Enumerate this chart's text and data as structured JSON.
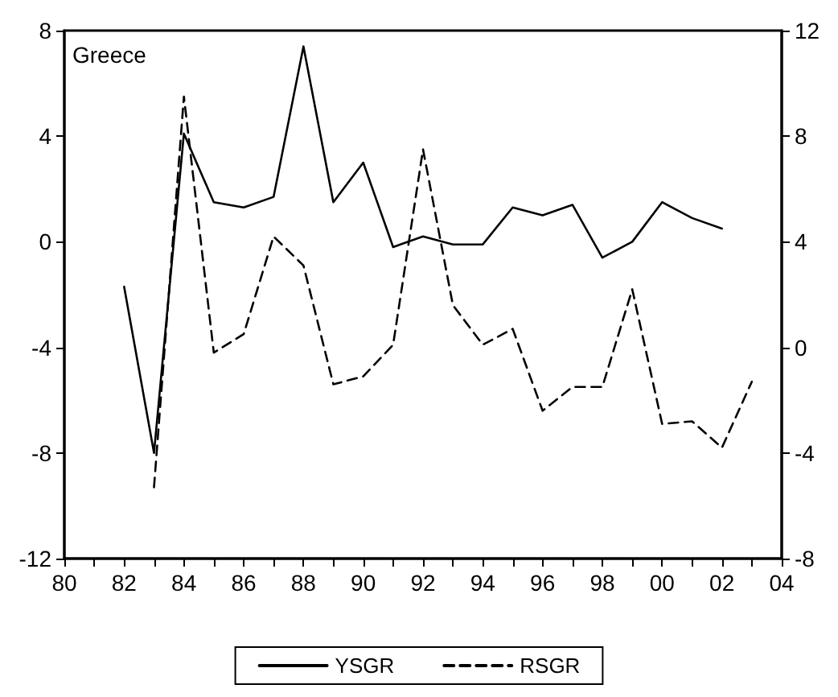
{
  "chart_data": {
    "type": "line",
    "title": "Greece",
    "x": [
      1982,
      1983,
      1984,
      1985,
      1986,
      1987,
      1988,
      1989,
      1990,
      1991,
      1992,
      1993,
      1994,
      1995,
      1996,
      1997,
      1998,
      1999,
      2000,
      2001,
      2002,
      2003
    ],
    "series": [
      {
        "name": "YSGR",
        "color": "#000000",
        "line_style": "solid",
        "values": [
          -1.7,
          -8.0,
          4.1,
          1.5,
          1.3,
          1.7,
          7.4,
          1.5,
          3.0,
          -0.2,
          0.2,
          -0.1,
          -0.1,
          1.3,
          1.0,
          1.4,
          -0.6,
          0.0,
          1.5,
          0.9,
          0.5,
          null
        ]
      },
      {
        "name": "RSGR",
        "color": "#000000",
        "line_style": "dashed",
        "axis": "y2",
        "values": [
          null,
          -5.3,
          9.5,
          -0.2,
          0.5,
          4.2,
          3.1,
          -1.4,
          -1.1,
          0.1,
          7.5,
          1.6,
          0.1,
          0.7,
          -2.4,
          -1.5,
          -1.5,
          2.2,
          -2.9,
          -2.8,
          -3.8,
          -1.3
        ]
      }
    ],
    "xlim": [
      1980,
      2004
    ],
    "xticks": [
      {
        "value": 1980,
        "label": "80"
      },
      {
        "value": 1981,
        "label": null
      },
      {
        "value": 1982,
        "label": "82"
      },
      {
        "value": 1983,
        "label": null
      },
      {
        "value": 1984,
        "label": "84"
      },
      {
        "value": 1985,
        "label": null
      },
      {
        "value": 1986,
        "label": "86"
      },
      {
        "value": 1987,
        "label": null
      },
      {
        "value": 1988,
        "label": "88"
      },
      {
        "value": 1989,
        "label": null
      },
      {
        "value": 1990,
        "label": "90"
      },
      {
        "value": 1991,
        "label": null
      },
      {
        "value": 1992,
        "label": "92"
      },
      {
        "value": 1993,
        "label": null
      },
      {
        "value": 1994,
        "label": "94"
      },
      {
        "value": 1995,
        "label": null
      },
      {
        "value": 1996,
        "label": "96"
      },
      {
        "value": 1997,
        "label": null
      },
      {
        "value": 1998,
        "label": "98"
      },
      {
        "value": 1999,
        "label": null
      },
      {
        "value": 2000,
        "label": "00"
      },
      {
        "value": 2001,
        "label": null
      },
      {
        "value": 2002,
        "label": "02"
      },
      {
        "value": 2003,
        "label": null
      },
      {
        "value": 2004,
        "label": "04"
      }
    ],
    "ylim": [
      -12,
      8
    ],
    "yticks": [
      -12,
      -8,
      -4,
      0,
      4,
      8
    ],
    "y2lim": [
      -8,
      12
    ],
    "y2ticks": [
      -8,
      -4,
      0,
      4,
      8,
      12
    ],
    "legend": "bottom",
    "marker": "none",
    "grid": false
  }
}
